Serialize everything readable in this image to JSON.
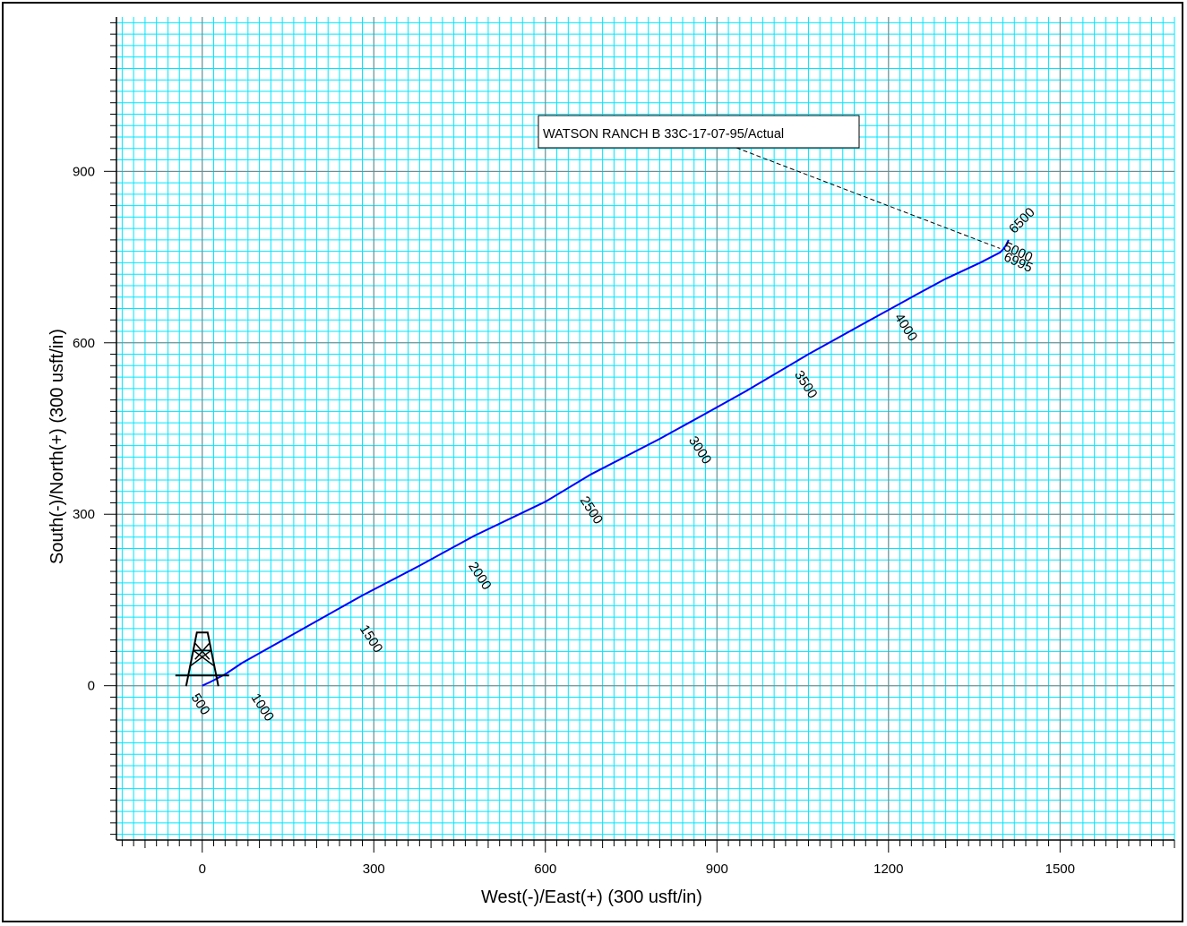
{
  "chart_data": {
    "type": "line",
    "xlabel": "West(-)/East(+) (300 usft/in)",
    "ylabel": "South(-)/North(+) (300 usft/in)",
    "xlim": [
      -150,
      1700
    ],
    "ylim": [
      -270,
      1170
    ],
    "x_ticks": [
      0,
      300,
      600,
      900,
      1200,
      1500
    ],
    "y_ticks": [
      0,
      300,
      600,
      900
    ],
    "x_tick_labels": [
      "0",
      "300",
      "600",
      "900",
      "1200",
      "1500"
    ],
    "y_tick_labels": [
      "0",
      "300",
      "600",
      "900"
    ],
    "grid": true,
    "minor_grid_step": 20,
    "well_label": "WATSON RANCH B 33C-17-07-95/Actual",
    "series": [
      {
        "x": [
          0,
          15,
          40,
          70,
          150,
          280,
          380,
          475,
          600,
          680,
          800,
          880,
          950,
          1060,
          1150,
          1250,
          1300,
          1360,
          1395,
          1400,
          1405,
          1410
        ],
        "y": [
          0,
          7,
          20,
          40,
          85,
          158,
          210,
          262,
          322,
          370,
          432,
          476,
          515,
          580,
          630,
          685,
          712,
          740,
          758,
          763,
          770,
          780
        ]
      }
    ],
    "md_labels": [
      {
        "text": "500",
        "x": -20,
        "y": -20
      },
      {
        "text": "1000",
        "x": 85,
        "y": -20
      },
      {
        "text": "1500",
        "x": 275,
        "y": 100
      },
      {
        "text": "2000",
        "x": 465,
        "y": 210
      },
      {
        "text": "2500",
        "x": 660,
        "y": 325
      },
      {
        "text": "3000",
        "x": 850,
        "y": 430
      },
      {
        "text": "3500",
        "x": 1035,
        "y": 545
      },
      {
        "text": "4000",
        "x": 1210,
        "y": 645
      },
      {
        "text": "5000",
        "x": 1400,
        "y": 763
      },
      {
        "text": "6995",
        "x": 1400,
        "y": 745
      },
      {
        "text": "6500",
        "x": 1420,
        "y": 790
      }
    ],
    "colors": {
      "grid_major": "#7f7f7f",
      "grid_minor": "#00e6ff",
      "line": "#0000ff"
    }
  }
}
